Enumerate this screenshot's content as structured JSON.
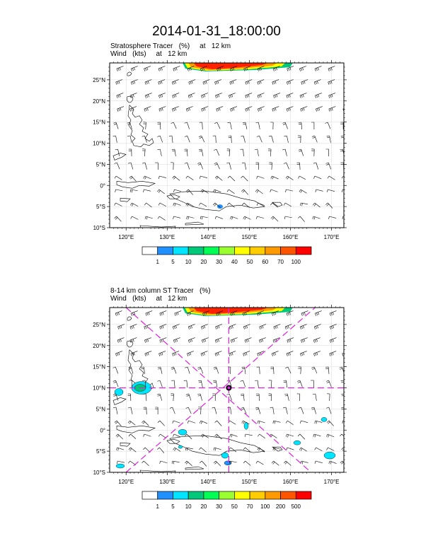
{
  "title": "2014-01-31_18:00:00",
  "panels": [
    {
      "line1": "Stratosphere Tracer   (%)     at   12 km",
      "line2": "Wind   (kts)     at   12 km",
      "legend_labels": [
        "1",
        "5",
        "10",
        "20",
        "30",
        "40",
        "50",
        "60",
        "70",
        "100"
      ]
    },
    {
      "line1": "8-14 km column ST Tracer   (%)",
      "line2": "Wind   (kts)     at   12 km",
      "legend_labels": [
        "1",
        "5",
        "10",
        "20",
        "30",
        "50",
        "70",
        "100",
        "200",
        "500"
      ]
    }
  ],
  "lat_labels": [
    "25°N",
    "20°N",
    "15°N",
    "10°N",
    "5°N",
    "0°",
    "5°S",
    "10°S"
  ],
  "lon_labels": [
    "120°E",
    "130°E",
    "140°E",
    "150°E",
    "160°E",
    "170°E"
  ],
  "chart_data": [
    {
      "type": "heatmap",
      "variable": "Stratosphere Tracer",
      "units": "%",
      "level": "12 km",
      "lon_range": [
        116,
        173
      ],
      "lat_range": [
        -10,
        29
      ],
      "colorbar_levels": [
        1,
        5,
        10,
        20,
        30,
        40,
        50,
        60,
        70,
        100
      ],
      "colors": [
        "#ffffff",
        "#1e90ff",
        "#00e5ff",
        "#00c87a",
        "#00ff55",
        "#9aff2e",
        "#ffff00",
        "#ffcc00",
        "#ff9900",
        "#ff5500",
        "#ff0000"
      ]
    },
    {
      "type": "heatmap",
      "variable": "8-14 km column ST Tracer",
      "units": "%",
      "level": "8-14 km",
      "lon_range": [
        116,
        173
      ],
      "lat_range": [
        -10,
        29
      ],
      "colorbar_levels": [
        1,
        5,
        10,
        20,
        30,
        50,
        70,
        100,
        200,
        500
      ],
      "colors": [
        "#ffffff",
        "#1e90ff",
        "#00e5ff",
        "#00c87a",
        "#00ff55",
        "#9aff2e",
        "#ffff00",
        "#ffcc00",
        "#ff9900",
        "#ff5500",
        "#ff0000"
      ],
      "marker": {
        "lon": 145,
        "lat": 10
      }
    }
  ]
}
